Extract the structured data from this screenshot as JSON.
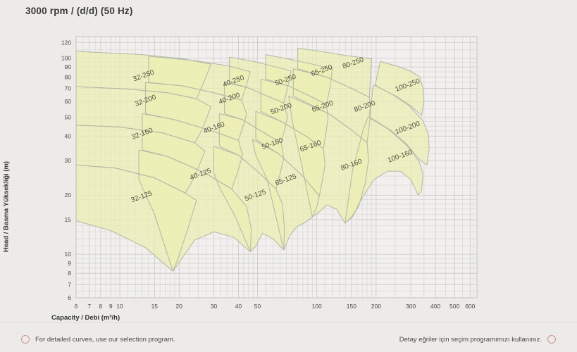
{
  "title": "3000 rpm / (d/d) (50 Hz)",
  "footer": {
    "left_note": "For detailed curves, use our selection program.",
    "right_note": "Detay eğriler için seçim programımızı kullanınız."
  },
  "colors": {
    "page_bg": "#ecebe8",
    "plot_bg": "#f1f0ee",
    "grid_minor": "#dad9d6",
    "grid_major": "#c8c8c5",
    "plot_border": "#c2c2bf",
    "region_fill": "#ecefb2",
    "region_stroke": "#b7bba8",
    "tick_text": "#4a4a4a",
    "region_label_text": "#50503f",
    "accent_pink": "#d2919b"
  },
  "chart_data": {
    "type": "area",
    "title": "3000 rpm / (d/d) (50 Hz)",
    "xlabel": "Capacity / Debi (m³/h)",
    "ylabel": "Head / Basma Yüksekliği (m)",
    "x_scale": "log",
    "y_scale": "log",
    "xlim": [
      6,
      650
    ],
    "ylim": [
      6,
      128.5
    ],
    "x_ticks": [
      6,
      7,
      8,
      9,
      10,
      15,
      20,
      30,
      40,
      50,
      100,
      150,
      200,
      300,
      400,
      500,
      600
    ],
    "y_ticks": [
      6,
      7,
      8,
      9,
      10,
      15,
      20,
      30,
      40,
      50,
      60,
      70,
      80,
      90,
      100,
      120
    ],
    "x_grid_minor": [
      6.5,
      7.5,
      8.5,
      9.5,
      11,
      12,
      13,
      14,
      16,
      17,
      18,
      19,
      22.5,
      25,
      27.5,
      32.5,
      35,
      37.5,
      42.5,
      45,
      47.5,
      55,
      60,
      65,
      70,
      75,
      80,
      85,
      90,
      95,
      110,
      120,
      130,
      140,
      160,
      170,
      180,
      190,
      250,
      350,
      450,
      550,
      625,
      650
    ],
    "y_grid_minor": [
      6.5,
      7.5,
      8.5,
      9.5,
      11,
      12,
      13,
      14,
      16,
      17,
      18,
      19,
      22.5,
      25,
      27.5,
      32.5,
      35,
      37.5,
      42.5,
      45,
      47.5,
      55,
      65,
      75,
      85,
      95,
      110
    ],
    "grid": true,
    "legend_position": "none",
    "regions": [
      {
        "label": "32-250",
        "label_at": [
          13.2,
          81
        ],
        "points": [
          [
            6,
            108
          ],
          [
            13,
            104
          ],
          [
            21,
            99
          ],
          [
            29,
            93
          ],
          [
            27.5,
            81
          ],
          [
            26,
            71
          ],
          [
            24.5,
            62
          ],
          [
            17.5,
            66.5
          ],
          [
            11,
            69.5
          ],
          [
            6,
            71.5
          ]
        ]
      },
      {
        "label": "32-200",
        "label_at": [
          13.5,
          60.5
        ],
        "points": [
          [
            6,
            71.5
          ],
          [
            11,
            69.5
          ],
          [
            17.5,
            66.5
          ],
          [
            24.5,
            62
          ],
          [
            29,
            56.5
          ],
          [
            27.2,
            47.5
          ],
          [
            25.5,
            41
          ],
          [
            24,
            37
          ],
          [
            16.5,
            41.5
          ],
          [
            10,
            44.5
          ],
          [
            6,
            45.5
          ]
        ]
      },
      {
        "label": "32-160",
        "label_at": [
          13,
          41
        ],
        "points": [
          [
            6,
            45.5
          ],
          [
            10,
            44.5
          ],
          [
            16.5,
            41.5
          ],
          [
            24,
            37
          ],
          [
            27,
            33.5
          ],
          [
            25,
            27.5
          ],
          [
            23,
            23
          ],
          [
            21.5,
            20.5
          ],
          [
            15,
            24.5
          ],
          [
            9.5,
            27.5
          ],
          [
            6,
            28.5
          ]
        ]
      },
      {
        "label": "32-125",
        "label_at": [
          12.9,
          19.6
        ],
        "points": [
          [
            6,
            28.5
          ],
          [
            9.5,
            27.5
          ],
          [
            15,
            24.5
          ],
          [
            21.5,
            20.5
          ],
          [
            24.5,
            18.8
          ],
          [
            22,
            13.2
          ],
          [
            19.8,
            9.6
          ],
          [
            18.6,
            8.2
          ],
          [
            13.5,
            10.8
          ],
          [
            9,
            13.2
          ],
          [
            6,
            14.8
          ]
        ]
      },
      {
        "label": "40-250",
        "label_at": [
          37.8,
          76
        ],
        "points": [
          [
            14,
            102
          ],
          [
            24,
            97
          ],
          [
            36,
            91
          ],
          [
            46,
            85
          ],
          [
            44.5,
            76
          ],
          [
            43,
            68
          ],
          [
            41.5,
            61
          ],
          [
            31,
            66
          ],
          [
            21,
            72
          ],
          [
            14,
            75
          ]
        ]
      },
      {
        "label": "40-200",
        "label_at": [
          36,
          62
        ],
        "points": [
          [
            13.5,
            75
          ],
          [
            21,
            72
          ],
          [
            31,
            66
          ],
          [
            41.5,
            61
          ],
          [
            44,
            52
          ],
          [
            42,
            44
          ],
          [
            40,
            38
          ],
          [
            29.5,
            42.5
          ],
          [
            19,
            48.5
          ],
          [
            13.5,
            52
          ]
        ]
      },
      {
        "label": "40-160",
        "label_at": [
          30.1,
          44
        ],
        "points": [
          [
            13,
            52
          ],
          [
            19,
            48.5
          ],
          [
            29.5,
            42.5
          ],
          [
            40,
            38
          ],
          [
            42,
            32
          ],
          [
            39.5,
            26
          ],
          [
            37,
            21.5
          ],
          [
            27,
            26
          ],
          [
            17.5,
            31.5
          ],
          [
            13,
            34
          ]
        ]
      },
      {
        "label": "40-125",
        "label_at": [
          25.7,
          25.5
        ],
        "points": [
          [
            12.5,
            34
          ],
          [
            17.5,
            31.5
          ],
          [
            27,
            26
          ],
          [
            37,
            21.5
          ],
          [
            44,
            17.5
          ],
          [
            46.5,
            13.5
          ],
          [
            46,
            10.3
          ],
          [
            38,
            12.2
          ],
          [
            30,
            13
          ],
          [
            24,
            11.8
          ],
          [
            18.6,
            8.2
          ],
          [
            15,
            16
          ],
          [
            12.5,
            24
          ]
        ]
      },
      {
        "label": "50-250",
        "label_at": [
          69.4,
          77
        ],
        "points": [
          [
            36,
            101
          ],
          [
            48,
            96
          ],
          [
            62,
            90
          ],
          [
            74,
            86
          ],
          [
            72,
            75
          ],
          [
            70,
            66
          ],
          [
            68,
            59
          ],
          [
            55,
            64.5
          ],
          [
            44,
            71
          ],
          [
            36,
            75
          ]
        ]
      },
      {
        "label": "50-200",
        "label_at": [
          66,
          55
        ],
        "points": [
          [
            34,
            75
          ],
          [
            44,
            71
          ],
          [
            55,
            64.5
          ],
          [
            68,
            59
          ],
          [
            71,
            50
          ],
          [
            68.5,
            43
          ],
          [
            66,
            37
          ],
          [
            53,
            42
          ],
          [
            42,
            48.5
          ],
          [
            34,
            52
          ]
        ]
      },
      {
        "label": "50-160",
        "label_at": [
          59.5,
          36.5
        ],
        "points": [
          [
            32,
            52
          ],
          [
            42,
            48.5
          ],
          [
            53,
            42
          ],
          [
            66,
            37
          ],
          [
            68,
            31
          ],
          [
            65,
            25.5
          ],
          [
            62,
            21.5
          ],
          [
            51,
            26
          ],
          [
            40,
            32
          ],
          [
            32,
            35.5
          ]
        ]
      },
      {
        "label": "50-125",
        "label_at": [
          48.8,
          19.9
        ],
        "points": [
          [
            30,
            35.5
          ],
          [
            40,
            32
          ],
          [
            51,
            26
          ],
          [
            62,
            21.5
          ],
          [
            67,
            18
          ],
          [
            68.5,
            13.5
          ],
          [
            68,
            10.5
          ],
          [
            60,
            12
          ],
          [
            53,
            12.8
          ],
          [
            49,
            11
          ],
          [
            46,
            10.3
          ],
          [
            38,
            16
          ],
          [
            32,
            22
          ],
          [
            30,
            26
          ]
        ]
      },
      {
        "label": "65-250",
        "label_at": [
          106,
          86
        ],
        "points": [
          [
            55,
            104
          ],
          [
            75,
            98
          ],
          [
            95,
            93
          ],
          [
            120,
            88
          ],
          [
            118,
            76
          ],
          [
            115,
            66
          ],
          [
            112,
            58
          ],
          [
            92,
            64
          ],
          [
            72,
            72
          ],
          [
            55,
            78
          ]
        ]
      },
      {
        "label": "65-200",
        "label_at": [
          107,
          56.5
        ],
        "points": [
          [
            52,
            78
          ],
          [
            72,
            72
          ],
          [
            92,
            64
          ],
          [
            112,
            58
          ],
          [
            114,
            49
          ],
          [
            111,
            41
          ],
          [
            108,
            34.5
          ],
          [
            88,
            40
          ],
          [
            66,
            47.5
          ],
          [
            52,
            53.5
          ]
        ]
      },
      {
        "label": "65-160",
        "label_at": [
          93,
          35.5
        ],
        "points": [
          [
            49,
            53.5
          ],
          [
            66,
            47.5
          ],
          [
            88,
            40
          ],
          [
            108,
            34.5
          ],
          [
            110,
            28.5
          ],
          [
            106.5,
            23.5
          ],
          [
            103,
            19.8
          ],
          [
            85,
            25
          ],
          [
            64,
            32.5
          ],
          [
            49,
            38.5
          ]
        ]
      },
      {
        "label": "65-125",
        "label_at": [
          69.7,
          23.9
        ],
        "points": [
          [
            47,
            38.5
          ],
          [
            64,
            32.5
          ],
          [
            85,
            25
          ],
          [
            103,
            19.8
          ],
          [
            100,
            17.5
          ],
          [
            95,
            15.5
          ],
          [
            87,
            14.5
          ],
          [
            79,
            13.8
          ],
          [
            73,
            12.5
          ],
          [
            68,
            10.5
          ],
          [
            56,
            24
          ],
          [
            49,
            32
          ]
        ]
      },
      {
        "label": "80-250",
        "label_at": [
          153,
          94
        ],
        "points": [
          [
            80,
            112
          ],
          [
            105,
            108
          ],
          [
            140,
            103
          ],
          [
            190,
            99
          ],
          [
            187,
            80
          ],
          [
            185,
            63
          ],
          [
            150,
            70
          ],
          [
            112,
            80
          ],
          [
            80,
            88
          ]
        ]
      },
      {
        "label": "80-200",
        "label_at": [
          175,
          56.5
        ],
        "points": [
          [
            76,
            88
          ],
          [
            112,
            80
          ],
          [
            150,
            70
          ],
          [
            185,
            63
          ],
          [
            188,
            53
          ],
          [
            184,
            44
          ],
          [
            180,
            37
          ],
          [
            150,
            43
          ],
          [
            115,
            52
          ],
          [
            76,
            64
          ]
        ]
      },
      {
        "label": "80-160",
        "label_at": [
          150,
          28.5
        ],
        "points": [
          [
            72,
            64
          ],
          [
            115,
            52
          ],
          [
            150,
            43
          ],
          [
            180,
            37
          ],
          [
            183,
            30
          ],
          [
            176,
            23
          ],
          [
            163,
            17.5
          ],
          [
            150,
            15.5
          ],
          [
            139,
            14.4
          ],
          [
            126,
            17
          ],
          [
            112,
            17.8
          ],
          [
            102,
            16.3
          ],
          [
            95,
            15.5
          ],
          [
            83,
            30
          ],
          [
            75,
            48
          ]
        ]
      },
      {
        "label": "100-250",
        "label_at": [
          289,
          72.5
        ],
        "points": [
          [
            210,
            96
          ],
          [
            255,
            91
          ],
          [
            300,
            85.5
          ],
          [
            333,
            80
          ],
          [
            346,
            70
          ],
          [
            350,
            60
          ],
          [
            340,
            51
          ],
          [
            300,
            57
          ],
          [
            255,
            63.5
          ],
          [
            210,
            70
          ],
          [
            198,
            73
          ]
        ]
      },
      {
        "label": "100-200",
        "label_at": [
          289,
          44
        ],
        "points": [
          [
            194,
            73
          ],
          [
            240,
            65.5
          ],
          [
            295,
            57
          ],
          [
            345,
            48
          ],
          [
            368,
            41
          ],
          [
            372,
            34.5
          ],
          [
            362,
            28.5
          ],
          [
            330,
            30.5
          ],
          [
            285,
            36.5
          ],
          [
            240,
            42.5
          ],
          [
            198,
            48
          ],
          [
            184,
            50
          ]
        ]
      },
      {
        "label": "100-160",
        "label_at": [
          265,
          31.5
        ],
        "points": [
          [
            182,
            50
          ],
          [
            230,
            43.5
          ],
          [
            285,
            36
          ],
          [
            332,
            29.5
          ],
          [
            346,
            25.5
          ],
          [
            340,
            21
          ],
          [
            327,
            20
          ],
          [
            300,
            24
          ],
          [
            265,
            26.5
          ],
          [
            228,
            26.5
          ],
          [
            195,
            24
          ],
          [
            168,
            19
          ],
          [
            152,
            15.5
          ],
          [
            139,
            14.4
          ],
          [
            152,
            27
          ],
          [
            163,
            35
          ],
          [
            172,
            43
          ]
        ]
      }
    ]
  }
}
